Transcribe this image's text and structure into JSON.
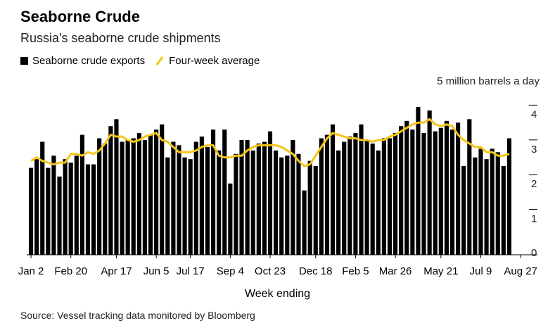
{
  "title": "Seaborne Crude",
  "subtitle": "Russia's seaborne crude shipments",
  "legend": {
    "bars": "Seaborne crude exports",
    "line": "Four-week average"
  },
  "unit_label": "5 million barrels a day",
  "xlabel": "Week ending",
  "source": "Source: Vessel tracking data monitored by Bloomberg",
  "colors": {
    "bars": "#000000",
    "line": "#f5c518",
    "grid": "#000000"
  },
  "chart_data": {
    "type": "bar",
    "xlabel": "Week ending",
    "ylabel": "",
    "ylim": [
      0,
      5
    ],
    "yticks": [
      0,
      1,
      2,
      3,
      4
    ],
    "xtick_labels": [
      "Jan 2",
      "Feb 20",
      "Apr 17",
      "Jun 5",
      "Jul 17",
      "Sep 4",
      "Oct 23",
      "Dec 18",
      "Feb 5",
      "Mar 26",
      "May 21",
      "Jul 9",
      "Aug 27"
    ],
    "xtick_index": [
      0,
      7,
      15,
      22,
      28,
      35,
      42,
      50,
      57,
      64,
      72,
      79,
      86
    ],
    "series": [
      {
        "name": "Seaborne crude exports",
        "type": "bar",
        "values": [
          2.5,
          2.75,
          3.25,
          2.5,
          2.85,
          2.25,
          2.75,
          2.65,
          2.85,
          3.45,
          2.6,
          2.6,
          3.35,
          3.2,
          3.7,
          3.9,
          3.25,
          3.3,
          3.35,
          3.5,
          3.3,
          3.45,
          3.6,
          3.75,
          2.8,
          3.25,
          3.15,
          2.8,
          2.75,
          3.25,
          3.4,
          3.1,
          3.6,
          3.0,
          3.6,
          2.05,
          2.9,
          3.3,
          3.3,
          3.0,
          3.2,
          3.25,
          3.55,
          3.0,
          2.8,
          2.85,
          3.3,
          2.9,
          1.85,
          2.7,
          2.55,
          3.35,
          3.45,
          3.75,
          3.0,
          3.25,
          3.4,
          3.5,
          3.75,
          3.3,
          3.2,
          3.0,
          3.35,
          3.35,
          3.5,
          3.7,
          3.85,
          3.6,
          4.25,
          3.5,
          4.15,
          3.55,
          3.65,
          3.85,
          3.6,
          3.8,
          2.55,
          3.9,
          2.8,
          3.05,
          2.75,
          3.05,
          2.95,
          2.55,
          3.35
        ]
      },
      {
        "name": "Four-week average",
        "type": "line",
        "values": [
          2.7,
          2.8,
          2.7,
          2.65,
          2.6,
          2.65,
          2.65,
          2.9,
          2.9,
          2.85,
          2.95,
          2.9,
          3.0,
          3.2,
          3.45,
          3.4,
          3.4,
          3.3,
          3.25,
          3.3,
          3.4,
          3.45,
          3.5,
          3.3,
          3.25,
          3.1,
          2.95,
          2.95,
          2.95,
          3.0,
          3.1,
          3.15,
          3.15,
          2.85,
          2.8,
          2.8,
          2.85,
          2.85,
          3.0,
          3.1,
          3.15,
          3.15,
          3.15,
          3.15,
          3.1,
          3.0,
          2.9,
          2.7,
          2.55,
          2.6,
          2.85,
          3.1,
          3.35,
          3.5,
          3.45,
          3.4,
          3.35,
          3.35,
          3.3,
          3.3,
          3.25,
          3.3,
          3.3,
          3.4,
          3.45,
          3.55,
          3.65,
          3.75,
          3.8,
          3.8,
          3.9,
          3.75,
          3.7,
          3.75,
          3.7,
          3.45,
          3.3,
          3.2,
          3.1,
          3.1,
          2.95,
          2.95,
          2.85,
          2.85,
          2.9
        ]
      }
    ]
  }
}
